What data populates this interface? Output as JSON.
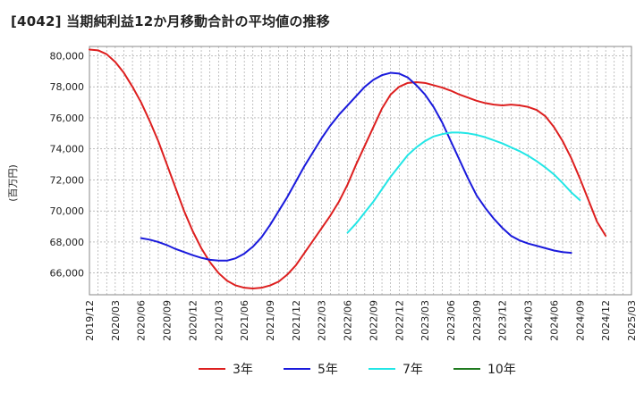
{
  "title": "[4042]  当期純利益12か月移動合計の平均値の推移",
  "chart_data": {
    "type": "line",
    "ylabel": "(百万円)",
    "ylim": [
      64600,
      80600
    ],
    "yticks": [
      66000,
      68000,
      70000,
      72000,
      74000,
      76000,
      78000,
      80000
    ],
    "ytick_labels": [
      "66,000",
      "68,000",
      "70,000",
      "72,000",
      "74,000",
      "76,000",
      "78,000",
      "80,000"
    ],
    "xticks": [
      "2019/12",
      "2020/03",
      "2020/06",
      "2020/09",
      "2020/12",
      "2021/03",
      "2021/06",
      "2021/09",
      "2021/12",
      "2022/03",
      "2022/06",
      "2022/09",
      "2022/12",
      "2023/03",
      "2023/06",
      "2023/09",
      "2023/12",
      "2024/03",
      "2024/06",
      "2024/09",
      "2024/12",
      "2025/03"
    ],
    "grid": true,
    "legend_position": "bottom",
    "series": [
      {
        "name": "3年",
        "color": "#dd1f1f",
        "start_index": 0,
        "values": [
          80400,
          80350,
          80100,
          79600,
          78900,
          78000,
          77000,
          75800,
          74500,
          73000,
          71500,
          70000,
          68700,
          67600,
          66700,
          66000,
          65500,
          65200,
          65050,
          65000,
          65050,
          65200,
          65450,
          65900,
          66500,
          67300,
          68100,
          68900,
          69700,
          70600,
          71700,
          73000,
          74200,
          75400,
          76600,
          77500,
          78000,
          78250,
          78300,
          78250,
          78100,
          77950,
          77750,
          77500,
          77300,
          77100,
          76950,
          76850,
          76800,
          76850,
          76800,
          76700,
          76500,
          76100,
          75400,
          74500,
          73400,
          72100,
          70700,
          69300,
          68400
        ]
      },
      {
        "name": "5年",
        "color": "#1a1adc",
        "start_index": 6,
        "values": [
          68250,
          68150,
          68000,
          67800,
          67550,
          67350,
          67150,
          66980,
          66850,
          66800,
          66800,
          66950,
          67250,
          67700,
          68300,
          69100,
          70000,
          70900,
          71900,
          72900,
          73800,
          74700,
          75500,
          76200,
          76800,
          77400,
          78000,
          78450,
          78750,
          78900,
          78850,
          78600,
          78100,
          77500,
          76700,
          75700,
          74500,
          73300,
          72100,
          71000,
          70200,
          69500,
          68900,
          68400,
          68100,
          67900,
          67750,
          67600,
          67450,
          67350,
          67300
        ]
      },
      {
        "name": "7年",
        "color": "#22e6e6",
        "start_index": 30,
        "values": [
          68600,
          69200,
          69900,
          70600,
          71400,
          72200,
          72900,
          73600,
          74100,
          74500,
          74800,
          74950,
          75050,
          75050,
          75000,
          74900,
          74750,
          74550,
          74350,
          74100,
          73850,
          73550,
          73200,
          72800,
          72350,
          71800,
          71200,
          70700
        ]
      },
      {
        "name": "10年",
        "color": "#1f7a1f",
        "start_index": 0,
        "values": []
      }
    ]
  }
}
